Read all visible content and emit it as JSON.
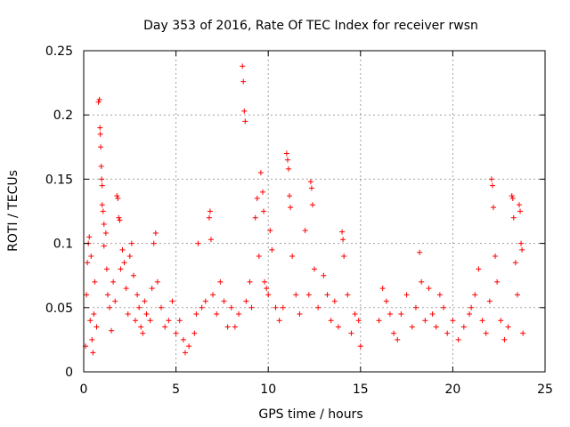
{
  "chart_data": {
    "type": "scatter",
    "title": "Day 353 of 2016, Rate Of TEC Index for receiver rwsn",
    "xlabel": "GPS time / hours",
    "ylabel": "ROTI / TECUs",
    "xlim": [
      0,
      25
    ],
    "ylim": [
      0,
      0.25
    ],
    "x_ticks": [
      0,
      5,
      10,
      15,
      20,
      25
    ],
    "x_tick_labels": [
      "0",
      "5",
      "10",
      "15",
      "20",
      "25"
    ],
    "y_ticks": [
      0,
      0.05,
      0.1,
      0.15,
      0.2,
      0.25
    ],
    "y_tick_labels": [
      "0",
      "0.05",
      "0.1",
      "0.15",
      "0.2",
      "0.25"
    ],
    "grid": true,
    "marker": "+",
    "series_color": "#ff0000",
    "series": [
      {
        "points": [
          [
            0.1,
            0.02
          ],
          [
            0.15,
            0.06
          ],
          [
            0.2,
            0.085
          ],
          [
            0.25,
            0.1
          ],
          [
            0.3,
            0.105
          ],
          [
            0.35,
            0.04
          ],
          [
            0.4,
            0.09
          ],
          [
            0.45,
            0.025
          ],
          [
            0.5,
            0.015
          ],
          [
            0.55,
            0.045
          ],
          [
            0.6,
            0.07
          ],
          [
            0.7,
            0.035
          ],
          [
            0.8,
            0.21
          ],
          [
            0.85,
            0.212
          ],
          [
            0.88,
            0.19
          ],
          [
            0.9,
            0.185
          ],
          [
            0.92,
            0.175
          ],
          [
            0.95,
            0.16
          ],
          [
            0.97,
            0.15
          ],
          [
            1.0,
            0.145
          ],
          [
            1.0,
            0.13
          ],
          [
            1.05,
            0.125
          ],
          [
            1.1,
            0.115
          ],
          [
            1.1,
            0.098
          ],
          [
            1.2,
            0.108
          ],
          [
            1.25,
            0.08
          ],
          [
            1.3,
            0.06
          ],
          [
            1.4,
            0.05
          ],
          [
            1.5,
            0.032
          ],
          [
            1.6,
            0.07
          ],
          [
            1.7,
            0.055
          ],
          [
            1.8,
            0.137
          ],
          [
            1.85,
            0.135
          ],
          [
            1.9,
            0.12
          ],
          [
            1.95,
            0.118
          ],
          [
            2.0,
            0.08
          ],
          [
            2.1,
            0.095
          ],
          [
            2.2,
            0.085
          ],
          [
            2.3,
            0.065
          ],
          [
            2.4,
            0.045
          ],
          [
            2.5,
            0.09
          ],
          [
            2.6,
            0.1
          ],
          [
            2.7,
            0.075
          ],
          [
            2.8,
            0.04
          ],
          [
            2.9,
            0.06
          ],
          [
            3.0,
            0.05
          ],
          [
            3.1,
            0.035
          ],
          [
            3.2,
            0.03
          ],
          [
            3.3,
            0.055
          ],
          [
            3.4,
            0.045
          ],
          [
            3.6,
            0.04
          ],
          [
            3.7,
            0.065
          ],
          [
            3.8,
            0.1
          ],
          [
            3.9,
            0.108
          ],
          [
            4.0,
            0.07
          ],
          [
            4.2,
            0.05
          ],
          [
            4.4,
            0.035
          ],
          [
            4.6,
            0.04
          ],
          [
            4.8,
            0.055
          ],
          [
            5.0,
            0.03
          ],
          [
            5.2,
            0.04
          ],
          [
            5.4,
            0.025
          ],
          [
            5.5,
            0.015
          ],
          [
            5.7,
            0.02
          ],
          [
            6.0,
            0.03
          ],
          [
            6.1,
            0.045
          ],
          [
            6.2,
            0.1
          ],
          [
            6.4,
            0.05
          ],
          [
            6.6,
            0.055
          ],
          [
            6.8,
            0.12
          ],
          [
            6.85,
            0.125
          ],
          [
            6.9,
            0.103
          ],
          [
            7.0,
            0.06
          ],
          [
            7.2,
            0.045
          ],
          [
            7.4,
            0.07
          ],
          [
            7.6,
            0.055
          ],
          [
            7.8,
            0.035
          ],
          [
            8.0,
            0.05
          ],
          [
            8.2,
            0.035
          ],
          [
            8.4,
            0.045
          ],
          [
            8.6,
            0.238
          ],
          [
            8.65,
            0.226
          ],
          [
            8.7,
            0.203
          ],
          [
            8.75,
            0.195
          ],
          [
            8.8,
            0.055
          ],
          [
            9.0,
            0.07
          ],
          [
            9.1,
            0.05
          ],
          [
            9.3,
            0.12
          ],
          [
            9.4,
            0.135
          ],
          [
            9.5,
            0.09
          ],
          [
            9.6,
            0.155
          ],
          [
            9.7,
            0.14
          ],
          [
            9.75,
            0.125
          ],
          [
            9.8,
            0.07
          ],
          [
            9.9,
            0.065
          ],
          [
            10.0,
            0.06
          ],
          [
            10.1,
            0.11
          ],
          [
            10.2,
            0.095
          ],
          [
            10.4,
            0.05
          ],
          [
            10.6,
            0.04
          ],
          [
            10.8,
            0.05
          ],
          [
            11.0,
            0.17
          ],
          [
            11.05,
            0.165
          ],
          [
            11.1,
            0.158
          ],
          [
            11.15,
            0.137
          ],
          [
            11.2,
            0.128
          ],
          [
            11.3,
            0.09
          ],
          [
            11.5,
            0.06
          ],
          [
            11.7,
            0.045
          ],
          [
            12.0,
            0.11
          ],
          [
            12.2,
            0.06
          ],
          [
            12.3,
            0.148
          ],
          [
            12.35,
            0.143
          ],
          [
            12.4,
            0.13
          ],
          [
            12.5,
            0.08
          ],
          [
            12.7,
            0.05
          ],
          [
            13.0,
            0.075
          ],
          [
            13.2,
            0.06
          ],
          [
            13.4,
            0.04
          ],
          [
            13.6,
            0.055
          ],
          [
            13.8,
            0.035
          ],
          [
            14.0,
            0.109
          ],
          [
            14.05,
            0.103
          ],
          [
            14.1,
            0.09
          ],
          [
            14.3,
            0.06
          ],
          [
            14.5,
            0.03
          ],
          [
            14.7,
            0.045
          ],
          [
            14.9,
            0.04
          ],
          [
            15.0,
            0.02
          ],
          [
            16.0,
            0.04
          ],
          [
            16.2,
            0.065
          ],
          [
            16.4,
            0.055
          ],
          [
            16.6,
            0.045
          ],
          [
            16.8,
            0.03
          ],
          [
            17.0,
            0.025
          ],
          [
            17.2,
            0.045
          ],
          [
            17.5,
            0.06
          ],
          [
            17.8,
            0.035
          ],
          [
            18.0,
            0.05
          ],
          [
            18.2,
            0.093
          ],
          [
            18.3,
            0.07
          ],
          [
            18.5,
            0.04
          ],
          [
            18.7,
            0.065
          ],
          [
            18.9,
            0.045
          ],
          [
            19.1,
            0.035
          ],
          [
            19.3,
            0.06
          ],
          [
            19.5,
            0.05
          ],
          [
            19.7,
            0.03
          ],
          [
            20.0,
            0.04
          ],
          [
            20.3,
            0.025
          ],
          [
            20.6,
            0.035
          ],
          [
            20.9,
            0.045
          ],
          [
            21.0,
            0.05
          ],
          [
            21.2,
            0.06
          ],
          [
            21.4,
            0.08
          ],
          [
            21.6,
            0.04
          ],
          [
            21.8,
            0.03
          ],
          [
            22.0,
            0.055
          ],
          [
            22.1,
            0.15
          ],
          [
            22.15,
            0.145
          ],
          [
            22.2,
            0.128
          ],
          [
            22.3,
            0.09
          ],
          [
            22.4,
            0.07
          ],
          [
            22.6,
            0.04
          ],
          [
            22.8,
            0.025
          ],
          [
            23.0,
            0.035
          ],
          [
            23.2,
            0.137
          ],
          [
            23.25,
            0.135
          ],
          [
            23.3,
            0.12
          ],
          [
            23.4,
            0.085
          ],
          [
            23.5,
            0.06
          ],
          [
            23.6,
            0.13
          ],
          [
            23.65,
            0.125
          ],
          [
            23.7,
            0.1
          ],
          [
            23.75,
            0.095
          ],
          [
            23.8,
            0.03
          ]
        ]
      }
    ]
  }
}
